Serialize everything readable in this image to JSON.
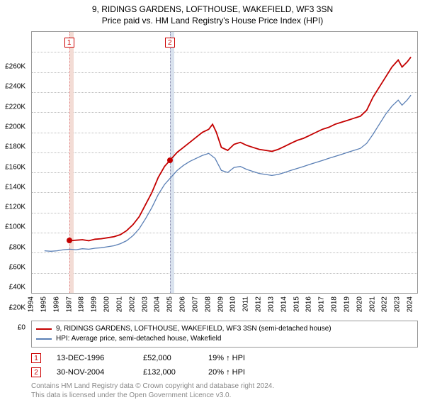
{
  "title": {
    "main": "9, RIDINGS GARDENS, LOFTHOUSE, WAKEFIELD, WF3 3SN",
    "sub": "Price paid vs. HM Land Registry's House Price Index (HPI)"
  },
  "chart": {
    "type": "line",
    "y_axis": {
      "min": 0,
      "max": 260000,
      "tick_step": 20000,
      "ticks": [
        {
          "v": 0,
          "label": "£0"
        },
        {
          "v": 20000,
          "label": "£20K"
        },
        {
          "v": 40000,
          "label": "£40K"
        },
        {
          "v": 60000,
          "label": "£60K"
        },
        {
          "v": 80000,
          "label": "£80K"
        },
        {
          "v": 100000,
          "label": "£100K"
        },
        {
          "v": 120000,
          "label": "£120K"
        },
        {
          "v": 140000,
          "label": "£140K"
        },
        {
          "v": 160000,
          "label": "£160K"
        },
        {
          "v": 180000,
          "label": "£180K"
        },
        {
          "v": 200000,
          "label": "£200K"
        },
        {
          "v": 220000,
          "label": "£220K"
        },
        {
          "v": 240000,
          "label": "£240K"
        },
        {
          "v": 260000,
          "label": "£260K"
        }
      ],
      "grid_color": "#bbbbbb"
    },
    "x_axis": {
      "min": 1994,
      "max": 2024.5,
      "ticks": [
        1994,
        1995,
        1996,
        1997,
        1998,
        1999,
        2000,
        2001,
        2002,
        2003,
        2004,
        2005,
        2006,
        2007,
        2008,
        2009,
        2010,
        2011,
        2012,
        2013,
        2014,
        2015,
        2016,
        2017,
        2018,
        2019,
        2020,
        2021,
        2022,
        2023,
        2024
      ]
    },
    "background_color": "#ffffff",
    "plot_border_color": "#999999",
    "bands": [
      {
        "x": 1996.95,
        "width_years": 0.35,
        "color": "#f3dcd5"
      },
      {
        "x": 2004.92,
        "width_years": 0.35,
        "color": "#d9e2ee"
      }
    ],
    "vlines": [
      {
        "x": 1996.95,
        "dash": true,
        "color": "#d77"
      },
      {
        "x": 2004.92,
        "dash": true,
        "color": "#88a"
      }
    ],
    "markers": [
      {
        "n": "1",
        "x": 1996.95,
        "y_top": true
      },
      {
        "n": "2",
        "x": 2004.92,
        "y_top": true
      }
    ],
    "points": [
      {
        "x": 1996.95,
        "y": 52000,
        "color": "#c40000"
      },
      {
        "x": 2004.92,
        "y": 132000,
        "color": "#c40000"
      }
    ],
    "series": [
      {
        "name": "9, RIDINGS GARDENS, LOFTHOUSE, WAKEFIELD, WF3 3SN (semi-detached house)",
        "color": "#c40000",
        "width": 1.8,
        "data": [
          [
            1996.95,
            52000
          ],
          [
            1997.5,
            52500
          ],
          [
            1998,
            53000
          ],
          [
            1998.5,
            52000
          ],
          [
            1999,
            53500
          ],
          [
            1999.5,
            54000
          ],
          [
            2000,
            55000
          ],
          [
            2000.5,
            56000
          ],
          [
            2001,
            58000
          ],
          [
            2001.5,
            62000
          ],
          [
            2002,
            68000
          ],
          [
            2002.5,
            76000
          ],
          [
            2003,
            88000
          ],
          [
            2003.5,
            100000
          ],
          [
            2004,
            115000
          ],
          [
            2004.5,
            126000
          ],
          [
            2004.92,
            132000
          ],
          [
            2005.5,
            140000
          ],
          [
            2006,
            145000
          ],
          [
            2006.5,
            150000
          ],
          [
            2007,
            155000
          ],
          [
            2007.5,
            160000
          ],
          [
            2008,
            163000
          ],
          [
            2008.3,
            168000
          ],
          [
            2008.6,
            160000
          ],
          [
            2009,
            145000
          ],
          [
            2009.5,
            142000
          ],
          [
            2010,
            148000
          ],
          [
            2010.5,
            150000
          ],
          [
            2011,
            147000
          ],
          [
            2011.5,
            145000
          ],
          [
            2012,
            143000
          ],
          [
            2012.5,
            142000
          ],
          [
            2013,
            141000
          ],
          [
            2013.5,
            143000
          ],
          [
            2014,
            146000
          ],
          [
            2014.5,
            149000
          ],
          [
            2015,
            152000
          ],
          [
            2015.5,
            154000
          ],
          [
            2016,
            157000
          ],
          [
            2016.5,
            160000
          ],
          [
            2017,
            163000
          ],
          [
            2017.5,
            165000
          ],
          [
            2018,
            168000
          ],
          [
            2018.5,
            170000
          ],
          [
            2019,
            172000
          ],
          [
            2019.5,
            174000
          ],
          [
            2020,
            176000
          ],
          [
            2020.5,
            182000
          ],
          [
            2021,
            195000
          ],
          [
            2021.5,
            205000
          ],
          [
            2022,
            215000
          ],
          [
            2022.5,
            225000
          ],
          [
            2023,
            232000
          ],
          [
            2023.3,
            225000
          ],
          [
            2023.7,
            230000
          ],
          [
            2024,
            235000
          ]
        ]
      },
      {
        "name": "HPI: Average price, semi-detached house, Wakefield",
        "color": "#5a7fb5",
        "width": 1.3,
        "data": [
          [
            1995,
            42000
          ],
          [
            1995.5,
            41500
          ],
          [
            1996,
            42000
          ],
          [
            1996.5,
            43000
          ],
          [
            1997,
            43500
          ],
          [
            1997.5,
            43000
          ],
          [
            1998,
            44000
          ],
          [
            1998.5,
            43500
          ],
          [
            1999,
            44500
          ],
          [
            1999.5,
            45000
          ],
          [
            2000,
            46000
          ],
          [
            2000.5,
            47000
          ],
          [
            2001,
            49000
          ],
          [
            2001.5,
            52000
          ],
          [
            2002,
            57000
          ],
          [
            2002.5,
            64000
          ],
          [
            2003,
            74000
          ],
          [
            2003.5,
            85000
          ],
          [
            2004,
            98000
          ],
          [
            2004.5,
            108000
          ],
          [
            2005,
            115000
          ],
          [
            2005.5,
            122000
          ],
          [
            2006,
            127000
          ],
          [
            2006.5,
            131000
          ],
          [
            2007,
            134000
          ],
          [
            2007.5,
            137000
          ],
          [
            2008,
            139000
          ],
          [
            2008.5,
            134000
          ],
          [
            2009,
            122000
          ],
          [
            2009.5,
            120000
          ],
          [
            2010,
            125000
          ],
          [
            2010.5,
            126000
          ],
          [
            2011,
            123000
          ],
          [
            2011.5,
            121000
          ],
          [
            2012,
            119000
          ],
          [
            2012.5,
            118000
          ],
          [
            2013,
            117000
          ],
          [
            2013.5,
            118000
          ],
          [
            2014,
            120000
          ],
          [
            2014.5,
            122000
          ],
          [
            2015,
            124000
          ],
          [
            2015.5,
            126000
          ],
          [
            2016,
            128000
          ],
          [
            2016.5,
            130000
          ],
          [
            2017,
            132000
          ],
          [
            2017.5,
            134000
          ],
          [
            2018,
            136000
          ],
          [
            2018.5,
            138000
          ],
          [
            2019,
            140000
          ],
          [
            2019.5,
            142000
          ],
          [
            2020,
            144000
          ],
          [
            2020.5,
            149000
          ],
          [
            2021,
            158000
          ],
          [
            2021.5,
            168000
          ],
          [
            2022,
            178000
          ],
          [
            2022.5,
            186000
          ],
          [
            2023,
            192000
          ],
          [
            2023.3,
            187000
          ],
          [
            2023.7,
            192000
          ],
          [
            2024,
            197000
          ]
        ]
      }
    ]
  },
  "legend": {
    "items": [
      {
        "color": "#c40000",
        "label": "9, RIDINGS GARDENS, LOFTHOUSE, WAKEFIELD, WF3 3SN (semi-detached house)"
      },
      {
        "color": "#5a7fb5",
        "label": "HPI: Average price, semi-detached house, Wakefield"
      }
    ]
  },
  "transactions": [
    {
      "n": "1",
      "date": "13-DEC-1996",
      "price": "£52,000",
      "diff": "19% ↑ HPI"
    },
    {
      "n": "2",
      "date": "30-NOV-2004",
      "price": "£132,000",
      "diff": "20% ↑ HPI"
    }
  ],
  "footer": {
    "line1": "Contains HM Land Registry data © Crown copyright and database right 2024.",
    "line2": "This data is licensed under the Open Government Licence v3.0."
  }
}
